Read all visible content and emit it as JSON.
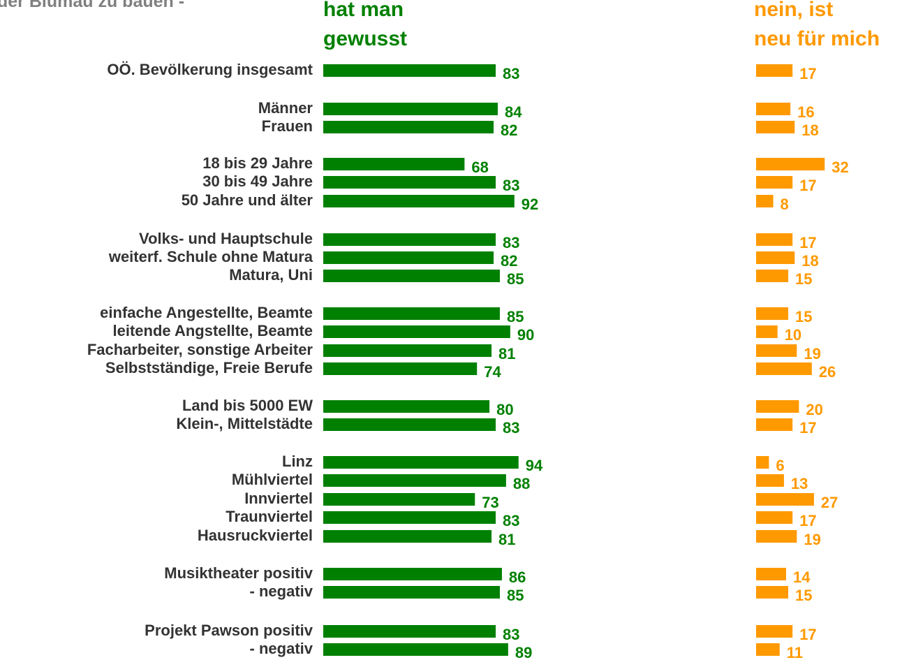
{
  "chart_data": {
    "type": "bar",
    "orientation": "horizontal",
    "title": "der Blumau zu bauen -",
    "categories": [
      "OÖ. Bevölkerung insgesamt",
      "Männer",
      "Frauen",
      "18 bis 29 Jahre",
      "30 bis 49 Jahre",
      "50 Jahre und älter",
      "Volks- und Hauptschule",
      "weiterf. Schule ohne Matura",
      "Matura, Uni",
      "einfache Angestellte, Beamte",
      "leitende Angstellte, Beamte",
      "Facharbeiter, sonstige Arbeiter",
      "Selbstständige, Freie Berufe",
      "Land bis 5000 EW",
      "Klein-, Mittelstädte",
      "Linz",
      "Mühlviertel",
      "Innviertel",
      "Traunviertel",
      "Hausruckviertel",
      "Musiktheater positiv",
      "- negativ",
      "Projekt Pawson positiv",
      "- negativ"
    ],
    "series": [
      {
        "name": "hat man\ngewusst",
        "color": "#008000",
        "values": [
          83,
          84,
          82,
          68,
          83,
          92,
          83,
          82,
          85,
          85,
          90,
          81,
          74,
          80,
          83,
          94,
          88,
          73,
          83,
          81,
          86,
          85,
          83,
          89
        ]
      },
      {
        "name": "nein, ist\nneu für mich",
        "color": "#ff9900",
        "values": [
          17,
          16,
          18,
          32,
          17,
          8,
          17,
          18,
          15,
          15,
          10,
          19,
          26,
          20,
          17,
          6,
          13,
          27,
          17,
          19,
          14,
          15,
          17,
          11
        ]
      }
    ]
  }
}
